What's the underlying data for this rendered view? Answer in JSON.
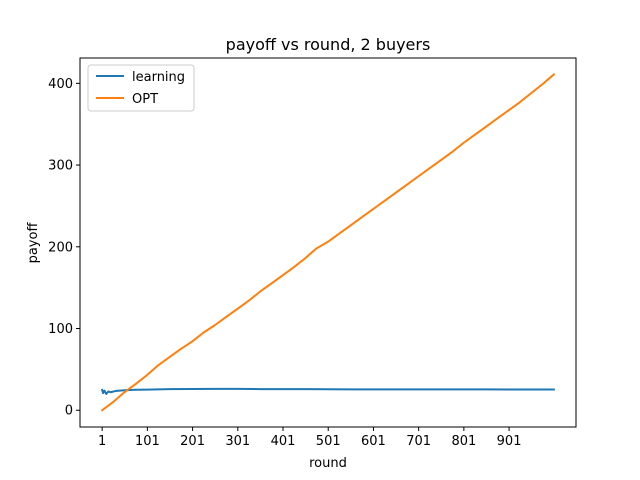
{
  "chart_data": {
    "type": "line",
    "title": "payoff vs round, 2 buyers",
    "xlabel": "round",
    "ylabel": "payoff",
    "xlim": [
      -48,
      1049
    ],
    "ylim": [
      -20.5,
      431
    ],
    "xticks": [
      1,
      101,
      201,
      301,
      401,
      501,
      601,
      701,
      801,
      901
    ],
    "yticks": [
      0,
      100,
      200,
      300,
      400
    ],
    "grid": false,
    "legend_position": "top-left",
    "series": [
      {
        "name": "learning",
        "color": "#1f77b4",
        "x": [
          1,
          3,
          6,
          10,
          15,
          20,
          30,
          40,
          50,
          75,
          100,
          150,
          200,
          250,
          300,
          350,
          400,
          450,
          500,
          550,
          600,
          650,
          700,
          750,
          800,
          850,
          900,
          950,
          1000
        ],
        "y": [
          25,
          21,
          24,
          20,
          23,
          22,
          23.5,
          24,
          24.5,
          25,
          25.3,
          25.8,
          26,
          26.2,
          26.1,
          25.9,
          25.8,
          25.8,
          25.7,
          25.6,
          25.6,
          25.6,
          25.5,
          25.5,
          25.5,
          25.5,
          25.4,
          25.4,
          25.4
        ]
      },
      {
        "name": "OPT",
        "color": "#ff7f0e",
        "x": [
          1,
          25,
          50,
          75,
          100,
          125,
          150,
          175,
          200,
          225,
          250,
          275,
          300,
          325,
          350,
          375,
          400,
          425,
          450,
          475,
          500,
          525,
          550,
          575,
          600,
          625,
          650,
          675,
          700,
          725,
          750,
          775,
          800,
          825,
          850,
          875,
          900,
          925,
          950,
          975,
          1000
        ],
        "y": [
          0,
          10,
          22,
          32,
          43,
          55,
          65,
          75,
          84,
          95,
          104,
          114,
          124,
          134,
          145,
          155,
          165,
          175,
          186,
          198,
          206,
          216,
          226,
          236,
          246,
          256,
          266,
          276,
          286,
          296,
          306,
          316,
          327,
          337,
          347,
          357,
          367,
          377,
          388,
          399,
          411
        ]
      }
    ]
  }
}
